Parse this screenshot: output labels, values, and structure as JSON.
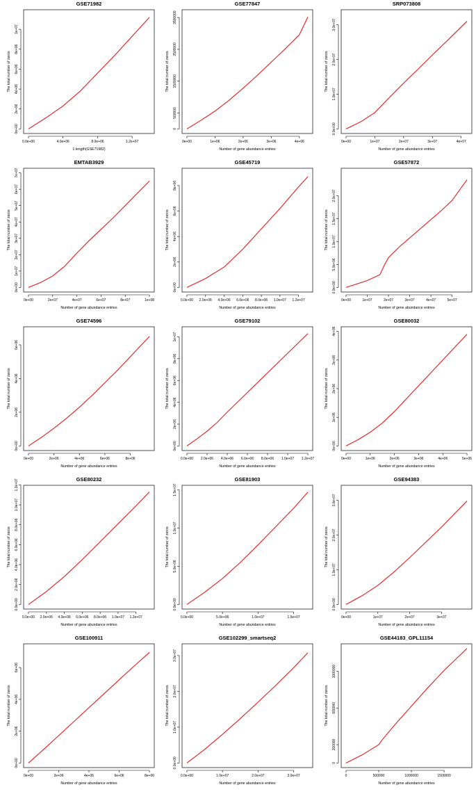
{
  "chart_data": [
    {
      "type": "line",
      "title": "GSE71982",
      "xlabel": "1:length(GSE71982)",
      "ylabel": "The total number of zeros",
      "xlim": [
        0,
        14000000
      ],
      "ylim": [
        0,
        11500000
      ],
      "xticks": [
        0,
        4000000,
        8000000,
        12000000
      ],
      "xtick_labels": [
        "0.0e+00",
        "4.0e+06",
        "8.0e+06",
        "1.2e+07"
      ],
      "yticks": [
        0,
        2000000,
        4000000,
        6000000,
        8000000,
        10000000
      ],
      "ytick_labels": [
        "0e+00",
        "2e+06",
        "4e+06",
        "6e+06",
        "8e+06",
        "1e+07"
      ],
      "series": [
        {
          "color": "#e41a1c",
          "x": [
            0,
            2000000,
            4000000,
            6000000,
            8000000,
            10000000,
            12000000,
            14000000
          ],
          "y": [
            0,
            1100000,
            2300000,
            3800000,
            5600000,
            7400000,
            9300000,
            11200000
          ]
        }
      ]
    },
    {
      "type": "line",
      "title": "GSE77847",
      "xlabel": "Number of gene abundance entries",
      "ylabel": "The total number of zeros",
      "xlim": [
        0,
        4300000
      ],
      "ylim": [
        0,
        3600000
      ],
      "xticks": [
        0,
        1000000,
        2000000,
        3000000,
        4000000
      ],
      "xtick_labels": [
        "0e+00",
        "1e+06",
        "2e+06",
        "3e+06",
        "4e+06"
      ],
      "yticks": [
        0,
        500000,
        1500000,
        2500000,
        3500000
      ],
      "ytick_labels": [
        "0",
        "500000",
        "1500000",
        "2500000",
        "3500000"
      ],
      "series": [
        {
          "color": "#e41a1c",
          "x": [
            0,
            500000,
            1000000,
            1500000,
            2000000,
            2500000,
            3000000,
            3500000,
            4000000,
            4300000
          ],
          "y": [
            0,
            270000,
            560000,
            900000,
            1280000,
            1680000,
            2100000,
            2520000,
            2960000,
            3520000
          ]
        }
      ]
    },
    {
      "type": "line",
      "title": "SRP073808",
      "xlabel": "Number of gene abundance entries",
      "ylabel": "The total number of zeros",
      "xlim": [
        0,
        42000000
      ],
      "ylim": [
        0,
        33000000
      ],
      "xticks": [
        0,
        10000000,
        20000000,
        30000000,
        40000000
      ],
      "xtick_labels": [
        "0e+00",
        "1e+07",
        "2e+07",
        "3e+07",
        "4e+07"
      ],
      "yticks": [
        0,
        10000000,
        20000000,
        30000000
      ],
      "ytick_labels": [
        "0.0e+00",
        "1.0e+07",
        "2.0e+07",
        "3.0e+07"
      ],
      "series": [
        {
          "color": "#e41a1c",
          "x": [
            0,
            5000000,
            10000000,
            15000000,
            20000000,
            25000000,
            30000000,
            35000000,
            42000000
          ],
          "y": [
            0,
            2000000,
            4700000,
            9000000,
            13200000,
            17200000,
            21300000,
            25300000,
            31000000
          ]
        }
      ]
    },
    {
      "type": "line",
      "title": "EMTAB3929",
      "xlabel": "Number of gene abundance entries",
      "ylabel": "The total number of zeros",
      "xlim": [
        0,
        100000000
      ],
      "ylim": [
        0,
        70000000
      ],
      "xticks": [
        0,
        20000000,
        40000000,
        60000000,
        80000000,
        100000000
      ],
      "xtick_labels": [
        "0e+00",
        "2e+07",
        "4e+07",
        "6e+07",
        "8e+07",
        "1e+08"
      ],
      "yticks": [
        0,
        10000000,
        20000000,
        30000000,
        40000000,
        50000000,
        60000000,
        70000000
      ],
      "ytick_labels": [
        "0e+00",
        "1e+07",
        "2e+07",
        "3e+07",
        "4e+07",
        "5e+07",
        "6e+07",
        "7e+07"
      ],
      "series": [
        {
          "color": "#e41a1c",
          "x": [
            0,
            10000000,
            20000000,
            30000000,
            40000000,
            50000000,
            60000000,
            70000000,
            80000000,
            90000000,
            100000000
          ],
          "y": [
            0,
            3000000,
            7000000,
            13000000,
            21000000,
            28500000,
            35500000,
            42500000,
            50000000,
            57500000,
            65000000
          ]
        }
      ]
    },
    {
      "type": "line",
      "title": "GSE45719",
      "xlabel": "Number of gene abundance entries",
      "ylabel": "The total number of zeros",
      "xlim": [
        0,
        13000000
      ],
      "ylim": [
        0,
        9000000
      ],
      "xticks": [
        0,
        2000000,
        4000000,
        6000000,
        8000000,
        10000000,
        12000000
      ],
      "xtick_labels": [
        "0.0e+00",
        "2.0e+06",
        "4.0e+06",
        "6.0e+06",
        "8.0e+06",
        "1.0e+07",
        "1.2e+07"
      ],
      "yticks": [
        0,
        2000000,
        4000000,
        6000000,
        8000000
      ],
      "ytick_labels": [
        "0e+00",
        "2e+06",
        "4e+06",
        "6e+06",
        "8e+06"
      ],
      "series": [
        {
          "color": "#e41a1c",
          "x": [
            0,
            2000000,
            4000000,
            6000000,
            8000000,
            10000000,
            12000000,
            13000000
          ],
          "y": [
            0,
            700000,
            1600000,
            3000000,
            4600000,
            6200000,
            7900000,
            8700000
          ]
        }
      ]
    },
    {
      "type": "line",
      "title": "GSE57872",
      "xlabel": "Number of gene abundance entries",
      "ylabel": "The total number of zeros",
      "xlim": [
        0,
        57000000
      ],
      "ylim": [
        0,
        25000000
      ],
      "xticks": [
        0,
        10000000,
        20000000,
        30000000,
        40000000,
        50000000
      ],
      "xtick_labels": [
        "0e+00",
        "1e+07",
        "2e+07",
        "3e+07",
        "4e+07",
        "5e+07"
      ],
      "yticks": [
        0,
        5000000,
        10000000,
        15000000,
        20000000
      ],
      "ytick_labels": [
        "0.0e+00",
        "5.0e+06",
        "1.0e+07",
        "1.5e+07",
        "2.0e+07"
      ],
      "series": [
        {
          "color": "#e41a1c",
          "x": [
            0,
            10000000,
            16000000,
            18000000,
            20000000,
            25000000,
            30000000,
            35000000,
            40000000,
            45000000,
            50000000,
            57000000
          ],
          "y": [
            0,
            1500000,
            2800000,
            4800000,
            6500000,
            8800000,
            10800000,
            12800000,
            14800000,
            16800000,
            19000000,
            23500000
          ]
        }
      ]
    },
    {
      "type": "line",
      "title": "GSE74596",
      "xlabel": "Number of gene abundance entries",
      "ylabel": "The total number of zeros",
      "xlim": [
        0,
        9500000
      ],
      "ylim": [
        0,
        6800000
      ],
      "xticks": [
        0,
        2000000,
        4000000,
        6000000,
        8000000
      ],
      "xtick_labels": [
        "0e+00",
        "2e+06",
        "4e+06",
        "6e+06",
        "8e+06"
      ],
      "yticks": [
        0,
        2000000,
        4000000,
        6000000
      ],
      "ytick_labels": [
        "0e+00",
        "2e+06",
        "4e+06",
        "6e+06"
      ],
      "series": [
        {
          "color": "#e41a1c",
          "x": [
            0,
            1000000,
            2000000,
            3000000,
            4000000,
            5000000,
            6000000,
            7000000,
            8000000,
            9500000
          ],
          "y": [
            0,
            500000,
            1050000,
            1650000,
            2300000,
            3000000,
            3750000,
            4500000,
            5300000,
            6500000
          ]
        }
      ]
    },
    {
      "type": "line",
      "title": "GSE79102",
      "xlabel": "Number of gene abundance entries",
      "ylabel": "The total number of zeros",
      "xlim": [
        0,
        12000000
      ],
      "ylim": [
        0,
        10500000
      ],
      "xticks": [
        0,
        2000000,
        4000000,
        6000000,
        8000000,
        10000000,
        12000000
      ],
      "xtick_labels": [
        "0.0e+00",
        "2.0e+06",
        "4.0e+06",
        "6.0e+06",
        "8.0e+06",
        "1.0e+07",
        "1.2e+07"
      ],
      "yticks": [
        0,
        2000000,
        4000000,
        6000000,
        8000000,
        10000000
      ],
      "ytick_labels": [
        "0e+00",
        "2e+06",
        "4e+06",
        "6e+06",
        "8e+06",
        "1e+07"
      ],
      "series": [
        {
          "color": "#e41a1c",
          "x": [
            0,
            1000000,
            2000000,
            3000000,
            4000000,
            6000000,
            8000000,
            10000000,
            12000000
          ],
          "y": [
            0,
            650000,
            1350000,
            2150000,
            3100000,
            4900000,
            6700000,
            8500000,
            10300000
          ]
        }
      ]
    },
    {
      "type": "line",
      "title": "GSE80032",
      "xlabel": "Number of gene abundance entries",
      "ylabel": "The total number of zeros",
      "xlim": [
        0,
        5000000
      ],
      "ylim": [
        0,
        4000000
      ],
      "xticks": [
        0,
        1000000,
        2000000,
        3000000,
        4000000,
        5000000
      ],
      "xtick_labels": [
        "0e+00",
        "1e+06",
        "2e+06",
        "3e+06",
        "4e+06",
        "5e+06"
      ],
      "yticks": [
        0,
        1000000,
        2000000,
        3000000,
        4000000
      ],
      "ytick_labels": [
        "0e+00",
        "1e+06",
        "2e+06",
        "3e+06",
        "4e+06"
      ],
      "series": [
        {
          "color": "#e41a1c",
          "x": [
            0,
            500000,
            1000000,
            1500000,
            2000000,
            2500000,
            3000000,
            3500000,
            4000000,
            4500000,
            5000000
          ],
          "y": [
            0,
            220000,
            480000,
            800000,
            1200000,
            1650000,
            2100000,
            2550000,
            3000000,
            3450000,
            3900000
          ]
        }
      ]
    },
    {
      "type": "line",
      "title": "GSE80232",
      "xlabel": "Number of gene abundance entries",
      "ylabel": "The total number of zeros",
      "xlim": [
        0,
        13500000
      ],
      "ylim": [
        0,
        11500000
      ],
      "xticks": [
        0,
        2000000,
        4000000,
        6000000,
        8000000,
        10000000,
        12000000
      ],
      "xtick_labels": [
        "0.0e+00",
        "2.0e+06",
        "4.0e+06",
        "6.0e+06",
        "8.0e+06",
        "1.0e+07",
        "1.2e+07"
      ],
      "yticks": [
        0,
        2000000,
        4000000,
        6000000,
        8000000,
        10000000,
        12000000
      ],
      "ytick_labels": [
        "0.0e+00",
        "2.0e+06",
        "4.0e+06",
        "6.0e+06",
        "8.0e+06",
        "1.0e+07",
        "1.2e+07"
      ],
      "series": [
        {
          "color": "#e41a1c",
          "x": [
            0,
            2000000,
            4000000,
            6000000,
            8000000,
            10000000,
            12000000,
            13500000
          ],
          "y": [
            0,
            1300000,
            2800000,
            4500000,
            6300000,
            8100000,
            9900000,
            11300000
          ]
        }
      ]
    },
    {
      "type": "line",
      "title": "GSE81903",
      "xlabel": "Number of gene abundance entries",
      "ylabel": "The total number of zeros",
      "xlim": [
        0,
        17000000
      ],
      "ylim": [
        0,
        15000000
      ],
      "xticks": [
        0,
        5000000,
        10000000,
        15000000
      ],
      "xtick_labels": [
        "0.0e+00",
        "5.0e+06",
        "1.0e+07",
        "1.5e+07"
      ],
      "yticks": [
        0,
        5000000,
        10000000,
        15000000
      ],
      "ytick_labels": [
        "0.0e+00",
        "5.0e+06",
        "1.0e+07",
        "1.5e+07"
      ],
      "series": [
        {
          "color": "#e41a1c",
          "x": [
            0,
            2500000,
            5000000,
            7500000,
            10000000,
            12500000,
            15000000,
            17000000
          ],
          "y": [
            0,
            1600000,
            3400000,
            5500000,
            7800000,
            10200000,
            12600000,
            14700000
          ]
        }
      ]
    },
    {
      "type": "line",
      "title": "GSE94383",
      "xlabel": "Number of gene abundance entries",
      "ylabel": "The total number of zeros",
      "xlim": [
        0,
        38000000
      ],
      "ylim": [
        0,
        33000000
      ],
      "xticks": [
        0,
        10000000,
        20000000,
        30000000
      ],
      "xtick_labels": [
        "0e+00",
        "1e+07",
        "2e+07",
        "3e+07"
      ],
      "yticks": [
        0,
        10000000,
        20000000,
        30000000
      ],
      "ytick_labels": [
        "0.0e+00",
        "1.0e+07",
        "2.0e+07",
        "3.0e+07"
      ],
      "series": [
        {
          "color": "#e41a1c",
          "x": [
            0,
            5000000,
            10000000,
            15000000,
            20000000,
            25000000,
            30000000,
            38000000
          ],
          "y": [
            0,
            2500000,
            5500000,
            9300000,
            13500000,
            17900000,
            22300000,
            29800000
          ]
        }
      ]
    },
    {
      "type": "line",
      "title": "GSE100911",
      "xlabel": "Number of gene abundance entries",
      "ylabel": "The total number of zeros",
      "xlim": [
        0,
        8000000
      ],
      "ylim": [
        0,
        7200000
      ],
      "xticks": [
        0,
        2000000,
        4000000,
        6000000,
        8000000
      ],
      "xtick_labels": [
        "0e+00",
        "2e+06",
        "4e+06",
        "6e+06",
        "8e+06"
      ],
      "yticks": [
        0,
        2000000,
        4000000,
        6000000
      ],
      "ytick_labels": [
        "0e+00",
        "2e+06",
        "4e+06",
        "6e+06"
      ],
      "series": [
        {
          "color": "#e41a1c",
          "x": [
            0,
            1000000,
            2000000,
            3000000,
            4000000,
            5000000,
            6000000,
            7000000,
            8000000
          ],
          "y": [
            0,
            850000,
            1720000,
            2600000,
            3480000,
            4350000,
            5230000,
            6100000,
            6950000
          ]
        }
      ]
    },
    {
      "type": "line",
      "title": "GSE102299_smartseq2",
      "xlabel": "Number of gene abundance entries",
      "ylabel": "The total number of zeros",
      "xlim": [
        0,
        34000000
      ],
      "ylim": [
        0,
        32000000
      ],
      "xticks": [
        0,
        10000000,
        20000000,
        30000000
      ],
      "xtick_labels": [
        "0.0e+00",
        "1.0e+07",
        "2.0e+07",
        "3.0e+07"
      ],
      "yticks": [
        0,
        10000000,
        20000000,
        30000000
      ],
      "ytick_labels": [
        "0.0e+00",
        "1.0e+07",
        "2.0e+07",
        "3.0e+07"
      ],
      "series": [
        {
          "color": "#e41a1c",
          "x": [
            0,
            5000000,
            10000000,
            15000000,
            20000000,
            25000000,
            30000000,
            34000000
          ],
          "y": [
            0,
            3800000,
            8000000,
            12400000,
            17000000,
            21700000,
            26600000,
            30800000
          ]
        }
      ]
    },
    {
      "type": "line",
      "title": "GSE44183_GPL11154",
      "xlabel": "Number of gene abundance entries",
      "ylabel": "The total number of zeros",
      "xlim": [
        0,
        1850000
      ],
      "ylim": [
        0,
        1250000
      ],
      "xticks": [
        0,
        500000,
        1000000,
        1500000
      ],
      "xtick_labels": [
        "0",
        "500000",
        "1000000",
        "1500000"
      ],
      "yticks": [
        0,
        200000,
        600000,
        1000000
      ],
      "ytick_labels": [
        "0",
        "200000",
        "600000",
        "1000000"
      ],
      "series": [
        {
          "color": "#e41a1c",
          "x": [
            0,
            250000,
            500000,
            550000,
            750000,
            1000000,
            1250000,
            1500000,
            1850000
          ],
          "y": [
            0,
            90000,
            200000,
            250000,
            420000,
            620000,
            820000,
            1010000,
            1250000
          ]
        }
      ]
    }
  ]
}
